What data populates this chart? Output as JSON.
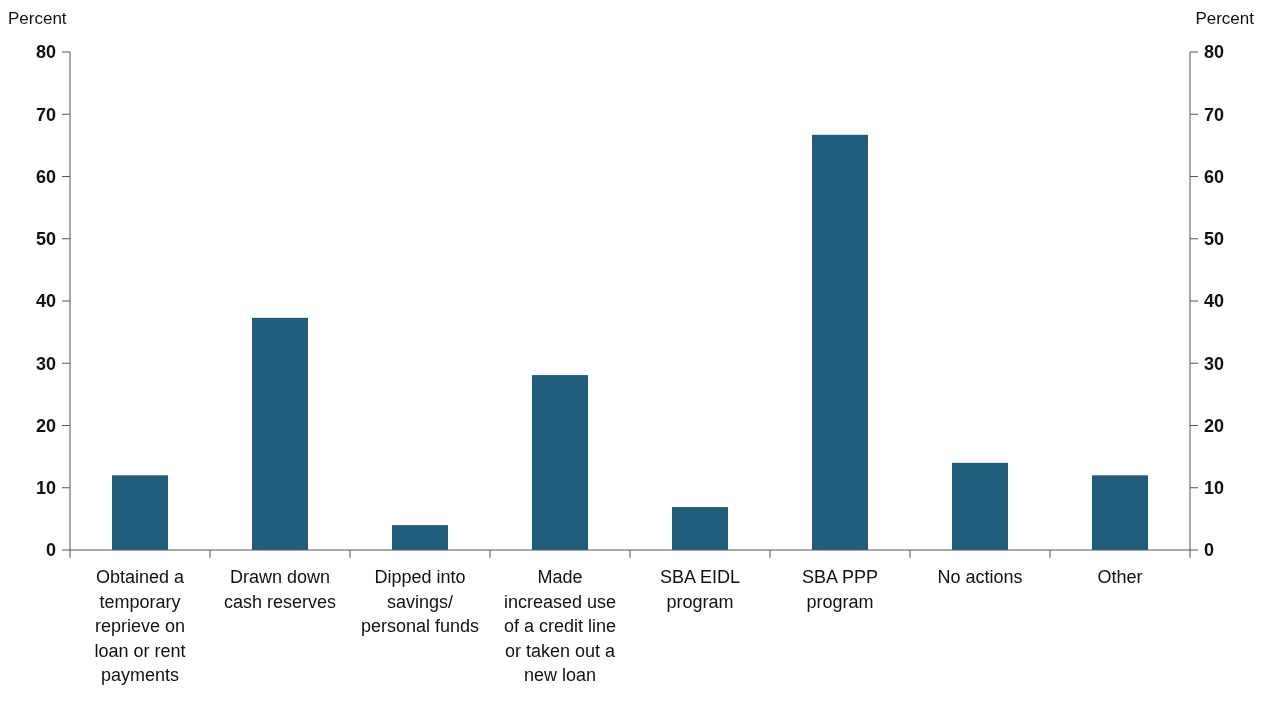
{
  "chart_data": {
    "type": "bar",
    "ylabel": "Percent",
    "y2label": "Percent",
    "categories": [
      "Obtained a temporary reprieve on loan or rent payments",
      "Drawn down cash reserves",
      "Dipped into savings/ personal funds",
      "Made increased use of a credit line or taken out a new loan",
      "SBA EIDL program",
      "SBA PPP program",
      "No actions",
      "Other"
    ],
    "values": [
      12,
      37.3,
      4,
      28.1,
      6.9,
      66.7,
      14,
      12
    ],
    "color": "#215d7a",
    "ylim": [
      0,
      80
    ],
    "yticks": [
      0,
      10,
      20,
      30,
      40,
      50,
      60,
      70,
      80
    ],
    "y2lim": [
      0,
      80
    ],
    "y2ticks": [
      0,
      10,
      20,
      30,
      40,
      50,
      60,
      70,
      80
    ],
    "grid": false
  }
}
